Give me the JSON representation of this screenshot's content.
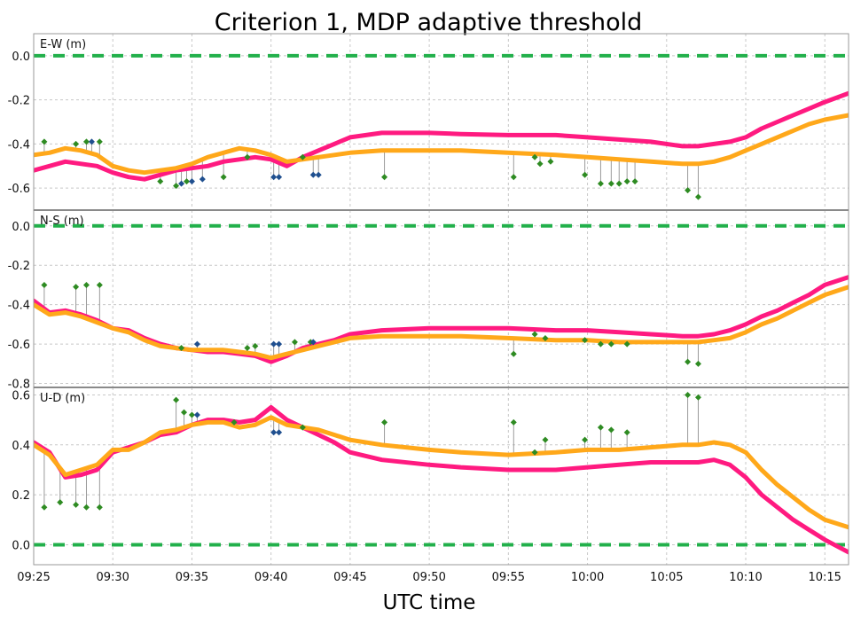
{
  "chart_data": {
    "type": "line",
    "title": "Criterion 1, MDP adaptive threshold",
    "xlabel": "UTC time",
    "x_ticks": [
      "09:25",
      "09:30",
      "09:35",
      "09:40",
      "09:45",
      "09:50",
      "09:55",
      "10:00",
      "10:05",
      "10:10",
      "10:15"
    ],
    "x_range": [
      "09:25",
      "10:16:30"
    ],
    "grid": true,
    "legend": "none",
    "colors": {
      "magenta": "#ff1a80",
      "orange": "#ffa81a",
      "green_markers": "#2e8b22",
      "blue_markers": "#1f4f8f",
      "reference": "#22b04b"
    },
    "panels": [
      {
        "label": "E-W (m)",
        "ylim": [
          -0.7,
          0.1
        ],
        "y_ticks": [
          "0.0",
          "-0.2",
          "-0.4",
          "-0.6"
        ],
        "y_tick_values": [
          0.0,
          -0.2,
          -0.4,
          -0.6
        ],
        "reference": 0.0,
        "series": [
          {
            "color": "magenta",
            "x": [
              "09:25",
              "09:26",
              "09:27",
              "09:28",
              "09:29",
              "09:30",
              "09:31",
              "09:32",
              "09:33",
              "09:34",
              "09:35",
              "09:36",
              "09:37",
              "09:38",
              "09:39",
              "09:40",
              "09:41",
              "09:42",
              "09:43",
              "09:44",
              "09:45",
              "09:47",
              "09:50",
              "09:52",
              "09:55",
              "09:58",
              "10:00",
              "10:02",
              "10:04",
              "10:06",
              "10:07",
              "10:08",
              "10:09",
              "10:10",
              "10:11",
              "10:12",
              "10:13",
              "10:14",
              "10:15",
              "10:16:30"
            ],
            "y": [
              -0.52,
              -0.5,
              -0.48,
              -0.49,
              -0.5,
              -0.53,
              -0.55,
              -0.56,
              -0.54,
              -0.52,
              -0.51,
              -0.5,
              -0.48,
              -0.47,
              -0.46,
              -0.47,
              -0.5,
              -0.46,
              -0.43,
              -0.4,
              -0.37,
              -0.35,
              -0.35,
              -0.355,
              -0.36,
              -0.36,
              -0.37,
              -0.38,
              -0.39,
              -0.41,
              -0.41,
              -0.4,
              -0.39,
              -0.37,
              -0.33,
              -0.3,
              -0.27,
              -0.24,
              -0.21,
              -0.17
            ]
          },
          {
            "color": "orange",
            "x": [
              "09:25",
              "09:26",
              "09:27",
              "09:28",
              "09:29",
              "09:30",
              "09:31",
              "09:32",
              "09:33",
              "09:34",
              "09:35",
              "09:36",
              "09:37",
              "09:38",
              "09:39",
              "09:40",
              "09:41",
              "09:42",
              "09:43",
              "09:44",
              "09:45",
              "09:47",
              "09:50",
              "09:52",
              "09:55",
              "09:58",
              "10:00",
              "10:02",
              "10:04",
              "10:06",
              "10:07",
              "10:08",
              "10:09",
              "10:10",
              "10:11",
              "10:12",
              "10:13",
              "10:14",
              "10:15",
              "10:16:30"
            ],
            "y": [
              -0.45,
              -0.44,
              -0.42,
              -0.43,
              -0.45,
              -0.5,
              -0.52,
              -0.53,
              -0.52,
              -0.51,
              -0.49,
              -0.46,
              -0.44,
              -0.42,
              -0.43,
              -0.45,
              -0.48,
              -0.47,
              -0.46,
              -0.45,
              -0.44,
              -0.43,
              -0.43,
              -0.43,
              -0.44,
              -0.45,
              -0.46,
              -0.47,
              -0.48,
              -0.49,
              -0.49,
              -0.48,
              -0.46,
              -0.43,
              -0.4,
              -0.37,
              -0.34,
              -0.31,
              -0.29,
              -0.27
            ]
          }
        ],
        "markers_green": [
          [
            "09:25:40",
            -0.39
          ],
          [
            "09:27:40",
            -0.4
          ],
          [
            "09:28:20",
            -0.39
          ],
          [
            "09:29:10",
            -0.39
          ],
          [
            "09:33:00",
            -0.57
          ],
          [
            "09:34:00",
            -0.59
          ],
          [
            "09:34:40",
            -0.57
          ],
          [
            "09:37:00",
            -0.55
          ],
          [
            "09:38:30",
            -0.46
          ],
          [
            "09:42:00",
            -0.46
          ],
          [
            "09:47:10",
            -0.55
          ],
          [
            "09:55:20",
            -0.55
          ],
          [
            "09:56:40",
            -0.46
          ],
          [
            "09:57:00",
            -0.49
          ],
          [
            "09:57:40",
            -0.48
          ],
          [
            "09:59:50",
            -0.54
          ],
          [
            "10:00:50",
            -0.58
          ],
          [
            "10:01:30",
            -0.58
          ],
          [
            "10:02:00",
            -0.58
          ],
          [
            "10:02:30",
            -0.57
          ],
          [
            "10:03:00",
            -0.57
          ],
          [
            "10:06:20",
            -0.61
          ],
          [
            "10:07:00",
            -0.64
          ]
        ],
        "markers_blue": [
          [
            "09:28:40",
            -0.39
          ],
          [
            "09:34:20",
            -0.58
          ],
          [
            "09:35:00",
            -0.57
          ],
          [
            "09:35:40",
            -0.56
          ],
          [
            "09:40:10",
            -0.55
          ],
          [
            "09:40:30",
            -0.55
          ],
          [
            "09:42:40",
            -0.54
          ],
          [
            "09:43:00",
            -0.54
          ]
        ]
      },
      {
        "label": "N-S (m)",
        "ylim": [
          -0.82,
          0.08
        ],
        "y_ticks": [
          "0.0",
          "-0.2",
          "-0.4",
          "-0.6",
          "-0.8"
        ],
        "y_tick_values": [
          0.0,
          -0.2,
          -0.4,
          -0.6,
          -0.8
        ],
        "reference": 0.0,
        "series": [
          {
            "color": "magenta",
            "x": [
              "09:25",
              "09:26",
              "09:27",
              "09:28",
              "09:29",
              "09:30",
              "09:31",
              "09:32",
              "09:33",
              "09:34",
              "09:35",
              "09:36",
              "09:37",
              "09:38",
              "09:39",
              "09:40",
              "09:41",
              "09:42",
              "09:43",
              "09:44",
              "09:45",
              "09:47",
              "09:50",
              "09:52",
              "09:55",
              "09:58",
              "10:00",
              "10:02",
              "10:04",
              "10:06",
              "10:07",
              "10:08",
              "10:09",
              "10:10",
              "10:11",
              "10:12",
              "10:13",
              "10:14",
              "10:15",
              "10:16:30"
            ],
            "y": [
              -0.38,
              -0.44,
              -0.43,
              -0.45,
              -0.48,
              -0.52,
              -0.53,
              -0.57,
              -0.6,
              -0.62,
              -0.63,
              -0.64,
              -0.64,
              -0.65,
              -0.66,
              -0.69,
              -0.66,
              -0.62,
              -0.6,
              -0.58,
              -0.55,
              -0.53,
              -0.52,
              -0.52,
              -0.52,
              -0.53,
              -0.53,
              -0.54,
              -0.55,
              -0.56,
              -0.56,
              -0.55,
              -0.53,
              -0.5,
              -0.46,
              -0.43,
              -0.39,
              -0.35,
              -0.3,
              -0.26
            ]
          },
          {
            "color": "orange",
            "x": [
              "09:25",
              "09:26",
              "09:27",
              "09:28",
              "09:29",
              "09:30",
              "09:31",
              "09:32",
              "09:33",
              "09:34",
              "09:35",
              "09:36",
              "09:37",
              "09:38",
              "09:39",
              "09:40",
              "09:41",
              "09:42",
              "09:43",
              "09:44",
              "09:45",
              "09:47",
              "09:50",
              "09:52",
              "09:55",
              "09:58",
              "10:00",
              "10:02",
              "10:04",
              "10:06",
              "10:07",
              "10:08",
              "10:09",
              "10:10",
              "10:11",
              "10:12",
              "10:13",
              "10:14",
              "10:15",
              "10:16:30"
            ],
            "y": [
              -0.4,
              -0.45,
              -0.44,
              -0.46,
              -0.49,
              -0.52,
              -0.54,
              -0.58,
              -0.61,
              -0.62,
              -0.63,
              -0.63,
              -0.63,
              -0.64,
              -0.65,
              -0.67,
              -0.65,
              -0.63,
              -0.61,
              -0.59,
              -0.57,
              -0.56,
              -0.56,
              -0.56,
              -0.57,
              -0.58,
              -0.58,
              -0.59,
              -0.59,
              -0.59,
              -0.59,
              -0.58,
              -0.57,
              -0.54,
              -0.5,
              -0.47,
              -0.43,
              -0.39,
              -0.35,
              -0.31
            ]
          }
        ],
        "markers_green": [
          [
            "09:25:40",
            -0.3
          ],
          [
            "09:27:40",
            -0.31
          ],
          [
            "09:28:20",
            -0.3
          ],
          [
            "09:29:10",
            -0.3
          ],
          [
            "09:34:20",
            -0.62
          ],
          [
            "09:38:30",
            -0.62
          ],
          [
            "09:39:00",
            -0.61
          ],
          [
            "09:41:30",
            -0.59
          ],
          [
            "09:42:30",
            -0.59
          ],
          [
            "09:55:20",
            -0.65
          ],
          [
            "09:56:40",
            -0.55
          ],
          [
            "09:57:20",
            -0.57
          ],
          [
            "09:59:50",
            -0.58
          ],
          [
            "10:00:50",
            -0.6
          ],
          [
            "10:01:30",
            -0.6
          ],
          [
            "10:02:30",
            -0.6
          ],
          [
            "10:06:20",
            -0.69
          ],
          [
            "10:07:00",
            -0.7
          ]
        ],
        "markers_blue": [
          [
            "09:35:20",
            -0.6
          ],
          [
            "09:40:10",
            -0.6
          ],
          [
            "09:40:30",
            -0.6
          ],
          [
            "09:42:40",
            -0.59
          ]
        ]
      },
      {
        "label": "U-D (m)",
        "ylim": [
          -0.08,
          0.63
        ],
        "y_ticks": [
          "0.6",
          "0.4",
          "0.2",
          "0.0"
        ],
        "y_tick_values": [
          0.6,
          0.4,
          0.2,
          0.0
        ],
        "reference": 0.0,
        "series": [
          {
            "color": "magenta",
            "x": [
              "09:25",
              "09:26",
              "09:27",
              "09:28",
              "09:29",
              "09:30",
              "09:31",
              "09:32",
              "09:33",
              "09:34",
              "09:35",
              "09:36",
              "09:37",
              "09:38",
              "09:39",
              "09:40",
              "09:41",
              "09:42",
              "09:43",
              "09:44",
              "09:45",
              "09:47",
              "09:50",
              "09:52",
              "09:55",
              "09:58",
              "10:00",
              "10:02",
              "10:04",
              "10:06",
              "10:07",
              "10:08",
              "10:09",
              "10:10",
              "10:11",
              "10:12",
              "10:13",
              "10:14",
              "10:15",
              "10:16:30"
            ],
            "y": [
              0.41,
              0.37,
              0.27,
              0.28,
              0.3,
              0.37,
              0.39,
              0.41,
              0.44,
              0.45,
              0.48,
              0.5,
              0.5,
              0.49,
              0.5,
              0.55,
              0.5,
              0.47,
              0.44,
              0.41,
              0.37,
              0.34,
              0.32,
              0.31,
              0.3,
              0.3,
              0.31,
              0.32,
              0.33,
              0.33,
              0.33,
              0.34,
              0.32,
              0.27,
              0.2,
              0.15,
              0.1,
              0.06,
              0.02,
              -0.03
            ]
          },
          {
            "color": "orange",
            "x": [
              "09:25",
              "09:26",
              "09:27",
              "09:28",
              "09:29",
              "09:30",
              "09:31",
              "09:32",
              "09:33",
              "09:34",
              "09:35",
              "09:36",
              "09:37",
              "09:38",
              "09:39",
              "09:40",
              "09:41",
              "09:42",
              "09:43",
              "09:44",
              "09:45",
              "09:47",
              "09:50",
              "09:52",
              "09:55",
              "09:58",
              "10:00",
              "10:02",
              "10:04",
              "10:06",
              "10:07",
              "10:08",
              "10:09",
              "10:10",
              "10:11",
              "10:12",
              "10:13",
              "10:14",
              "10:15",
              "10:16:30"
            ],
            "y": [
              0.4,
              0.36,
              0.28,
              0.3,
              0.32,
              0.38,
              0.38,
              0.41,
              0.45,
              0.46,
              0.48,
              0.49,
              0.49,
              0.47,
              0.48,
              0.51,
              0.48,
              0.47,
              0.46,
              0.44,
              0.42,
              0.4,
              0.38,
              0.37,
              0.36,
              0.37,
              0.38,
              0.38,
              0.39,
              0.4,
              0.4,
              0.41,
              0.4,
              0.37,
              0.3,
              0.24,
              0.19,
              0.14,
              0.1,
              0.07
            ]
          }
        ],
        "markers_green": [
          [
            "09:25:40",
            0.15
          ],
          [
            "09:26:40",
            0.17
          ],
          [
            "09:27:40",
            0.16
          ],
          [
            "09:28:20",
            0.15
          ],
          [
            "09:29:10",
            0.15
          ],
          [
            "09:34:00",
            0.58
          ],
          [
            "09:34:30",
            0.53
          ],
          [
            "09:35:00",
            0.52
          ],
          [
            "09:37:40",
            0.49
          ],
          [
            "09:42:00",
            0.47
          ],
          [
            "09:47:10",
            0.49
          ],
          [
            "09:55:20",
            0.49
          ],
          [
            "09:56:40",
            0.37
          ],
          [
            "09:57:20",
            0.42
          ],
          [
            "09:59:50",
            0.42
          ],
          [
            "10:00:50",
            0.47
          ],
          [
            "10:01:30",
            0.46
          ],
          [
            "10:02:30",
            0.45
          ],
          [
            "10:06:20",
            0.6
          ],
          [
            "10:07:00",
            0.59
          ]
        ],
        "markers_blue": [
          [
            "09:35:20",
            0.52
          ],
          [
            "09:40:10",
            0.45
          ],
          [
            "09:40:30",
            0.45
          ]
        ]
      }
    ]
  }
}
